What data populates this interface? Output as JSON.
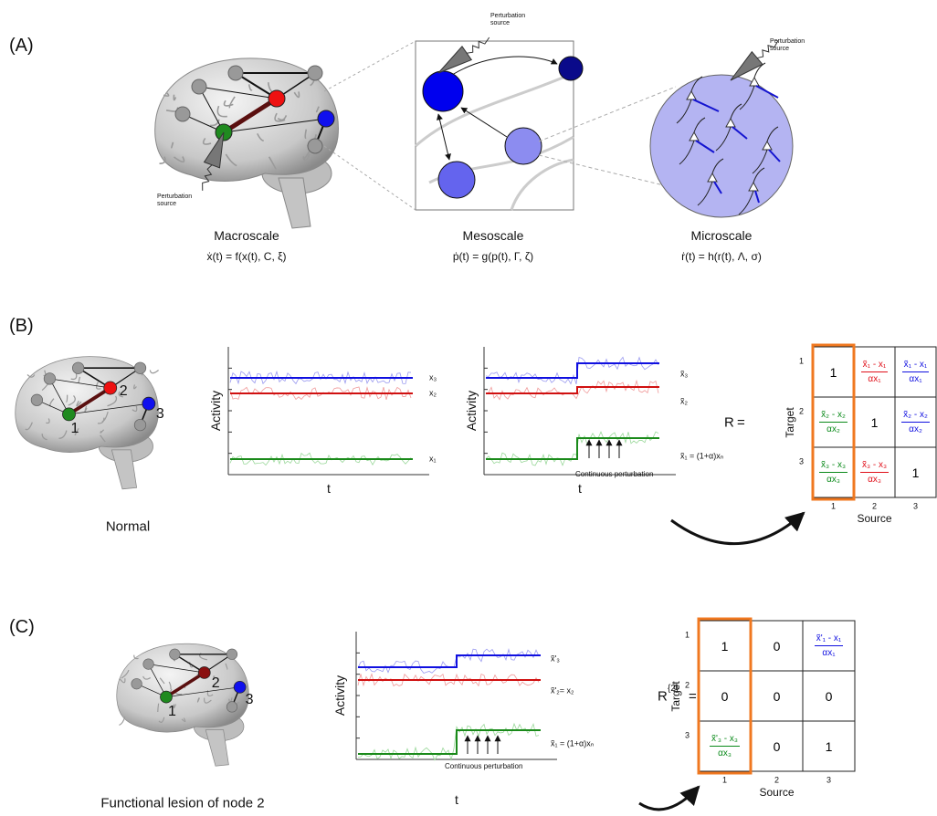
{
  "panel_a": {
    "label": "(A)",
    "perturbation_labels": [
      "Perturbation source",
      "Perturbation source",
      "Perturbation source"
    ],
    "scales": [
      {
        "name": "Macroscale",
        "equation": "ẋ(t) = f(x(t), C, ξ)"
      },
      {
        "name": "Mesoscale",
        "equation": "ṗ(t) = g(p(t), Γ, ζ)"
      },
      {
        "name": "Microscale",
        "equation": "ṙ(t) = h(r(t), Λ, σ)"
      }
    ]
  },
  "panel_b": {
    "label": "(B)",
    "brain_label": "Normal",
    "node_labels": [
      "1",
      "2",
      "3"
    ],
    "plot_normal": {
      "y_label": "Activity",
      "x_label": "t",
      "series_labels": [
        "x₃",
        "x₂",
        "x₁"
      ]
    },
    "plot_perturbed": {
      "y_label": "Activity",
      "x_label": "t",
      "series_labels": [
        "x̃₃",
        "x̃₂",
        "x̃₁ = (1+α)xₙ"
      ],
      "annotation": "Continuous perturbation"
    },
    "matrix": {
      "label": "R",
      "superscript": "",
      "equals": "=",
      "y_label": "Target",
      "x_label": "Source",
      "row_labels": [
        "1",
        "2",
        "3"
      ],
      "col_labels": [
        "1",
        "2",
        "3"
      ],
      "rows": [
        [
          {
            "text": "1"
          },
          {
            "num": "x̃₁ - x₁",
            "den": "αx₁",
            "color": "#e0101a"
          },
          {
            "num": "x̃₁ - x₁",
            "den": "αx₁",
            "color": "#1010e0"
          }
        ],
        [
          {
            "num": "x̃₂ - x₂",
            "den": "αx₂",
            "color": "#0a8a1a"
          },
          {
            "text": "1"
          },
          {
            "num": "x̃₂ - x₂",
            "den": "αx₂",
            "color": "#1010e0"
          }
        ],
        [
          {
            "num": "x̃₃ - x₃",
            "den": "αx₃",
            "color": "#0a8a1a"
          },
          {
            "num": "x̃₃ - x₃",
            "den": "αx₃",
            "color": "#e0101a"
          },
          {
            "text": "1"
          }
        ]
      ]
    }
  },
  "panel_c": {
    "label": "(C)",
    "brain_label": "Functional lesion of node 2",
    "node_labels": [
      "1",
      "2",
      "3"
    ],
    "plot": {
      "y_label": "Activity",
      "x_label": "t",
      "series_labels": [
        "x̃'₃",
        "x̃'₂= x₂",
        "x̃₁ = (1+α)xₙ"
      ],
      "annotation": "Continuous perturbation"
    },
    "matrix": {
      "label": "R",
      "superscript": "{2}",
      "equals": "=",
      "y_label": "Target",
      "x_label": "Source",
      "row_labels": [
        "1",
        "2",
        "3"
      ],
      "col_labels": [
        "1",
        "2",
        "3"
      ],
      "rows": [
        [
          {
            "text": "1"
          },
          {
            "text": "0"
          },
          {
            "num": "x̃'₁ - x₁",
            "den": "αx₁",
            "color": "#1010e0"
          }
        ],
        [
          {
            "text": "0"
          },
          {
            "text": "0"
          },
          {
            "text": "0"
          }
        ],
        [
          {
            "num": "x̃'₃ - x₃",
            "den": "αx₃",
            "color": "#0a8a1a"
          },
          {
            "text": "0"
          },
          {
            "text": "1"
          }
        ]
      ]
    }
  }
}
